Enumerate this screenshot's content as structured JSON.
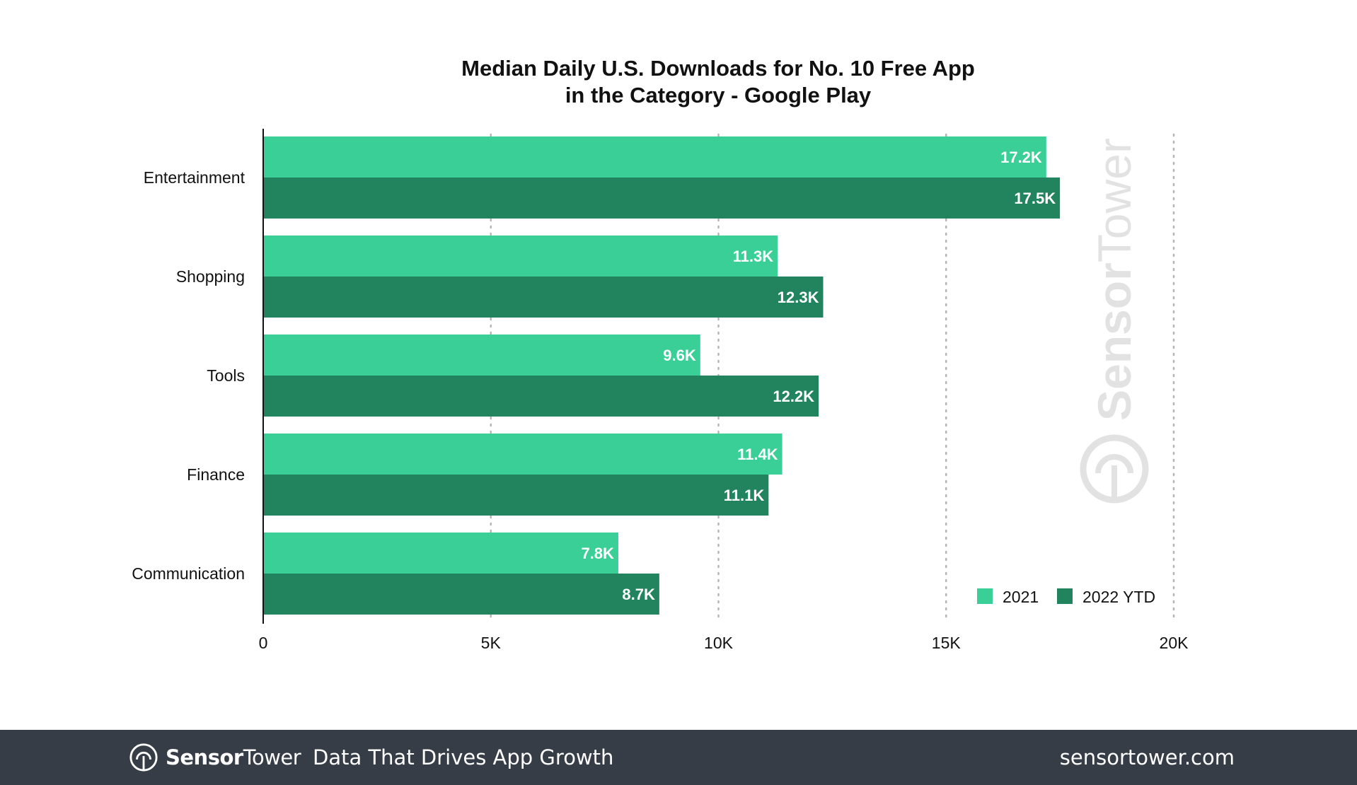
{
  "chart_data": {
    "type": "bar",
    "orientation": "horizontal",
    "title": [
      "Median Daily U.S. Downloads for No. 10 Free App",
      "in the Category - Google Play"
    ],
    "categories": [
      "Entertainment",
      "Shopping",
      "Tools",
      "Finance",
      "Communication"
    ],
    "series": [
      {
        "name": "2021",
        "color": "#39cf97",
        "values": [
          17200,
          11300,
          9600,
          11400,
          7800
        ],
        "labels": [
          "17.2K",
          "11.3K",
          "9.6K",
          "11.4K",
          "7.8K"
        ]
      },
      {
        "name": "2022 YTD",
        "color": "#21845e",
        "values": [
          17500,
          12300,
          12200,
          11100,
          8700
        ],
        "labels": [
          "17.5K",
          "12.3K",
          "12.2K",
          "11.1K",
          "8.7K"
        ]
      }
    ],
    "xlim": [
      0,
      20000
    ],
    "xticks": [
      0,
      5000,
      10000,
      15000,
      20000
    ],
    "xtick_labels": [
      "0",
      "5K",
      "10K",
      "15K",
      "20K"
    ],
    "grid": "vertical-dotted",
    "legend_position": "bottom-right"
  },
  "watermark": {
    "text_1": "Sensor",
    "text_2": "Tower"
  },
  "footer": {
    "brand_1": "Sensor",
    "brand_2": "Tower",
    "tagline": "Data That Drives App Growth",
    "site": "sensortower.com",
    "background": "#363d47"
  }
}
